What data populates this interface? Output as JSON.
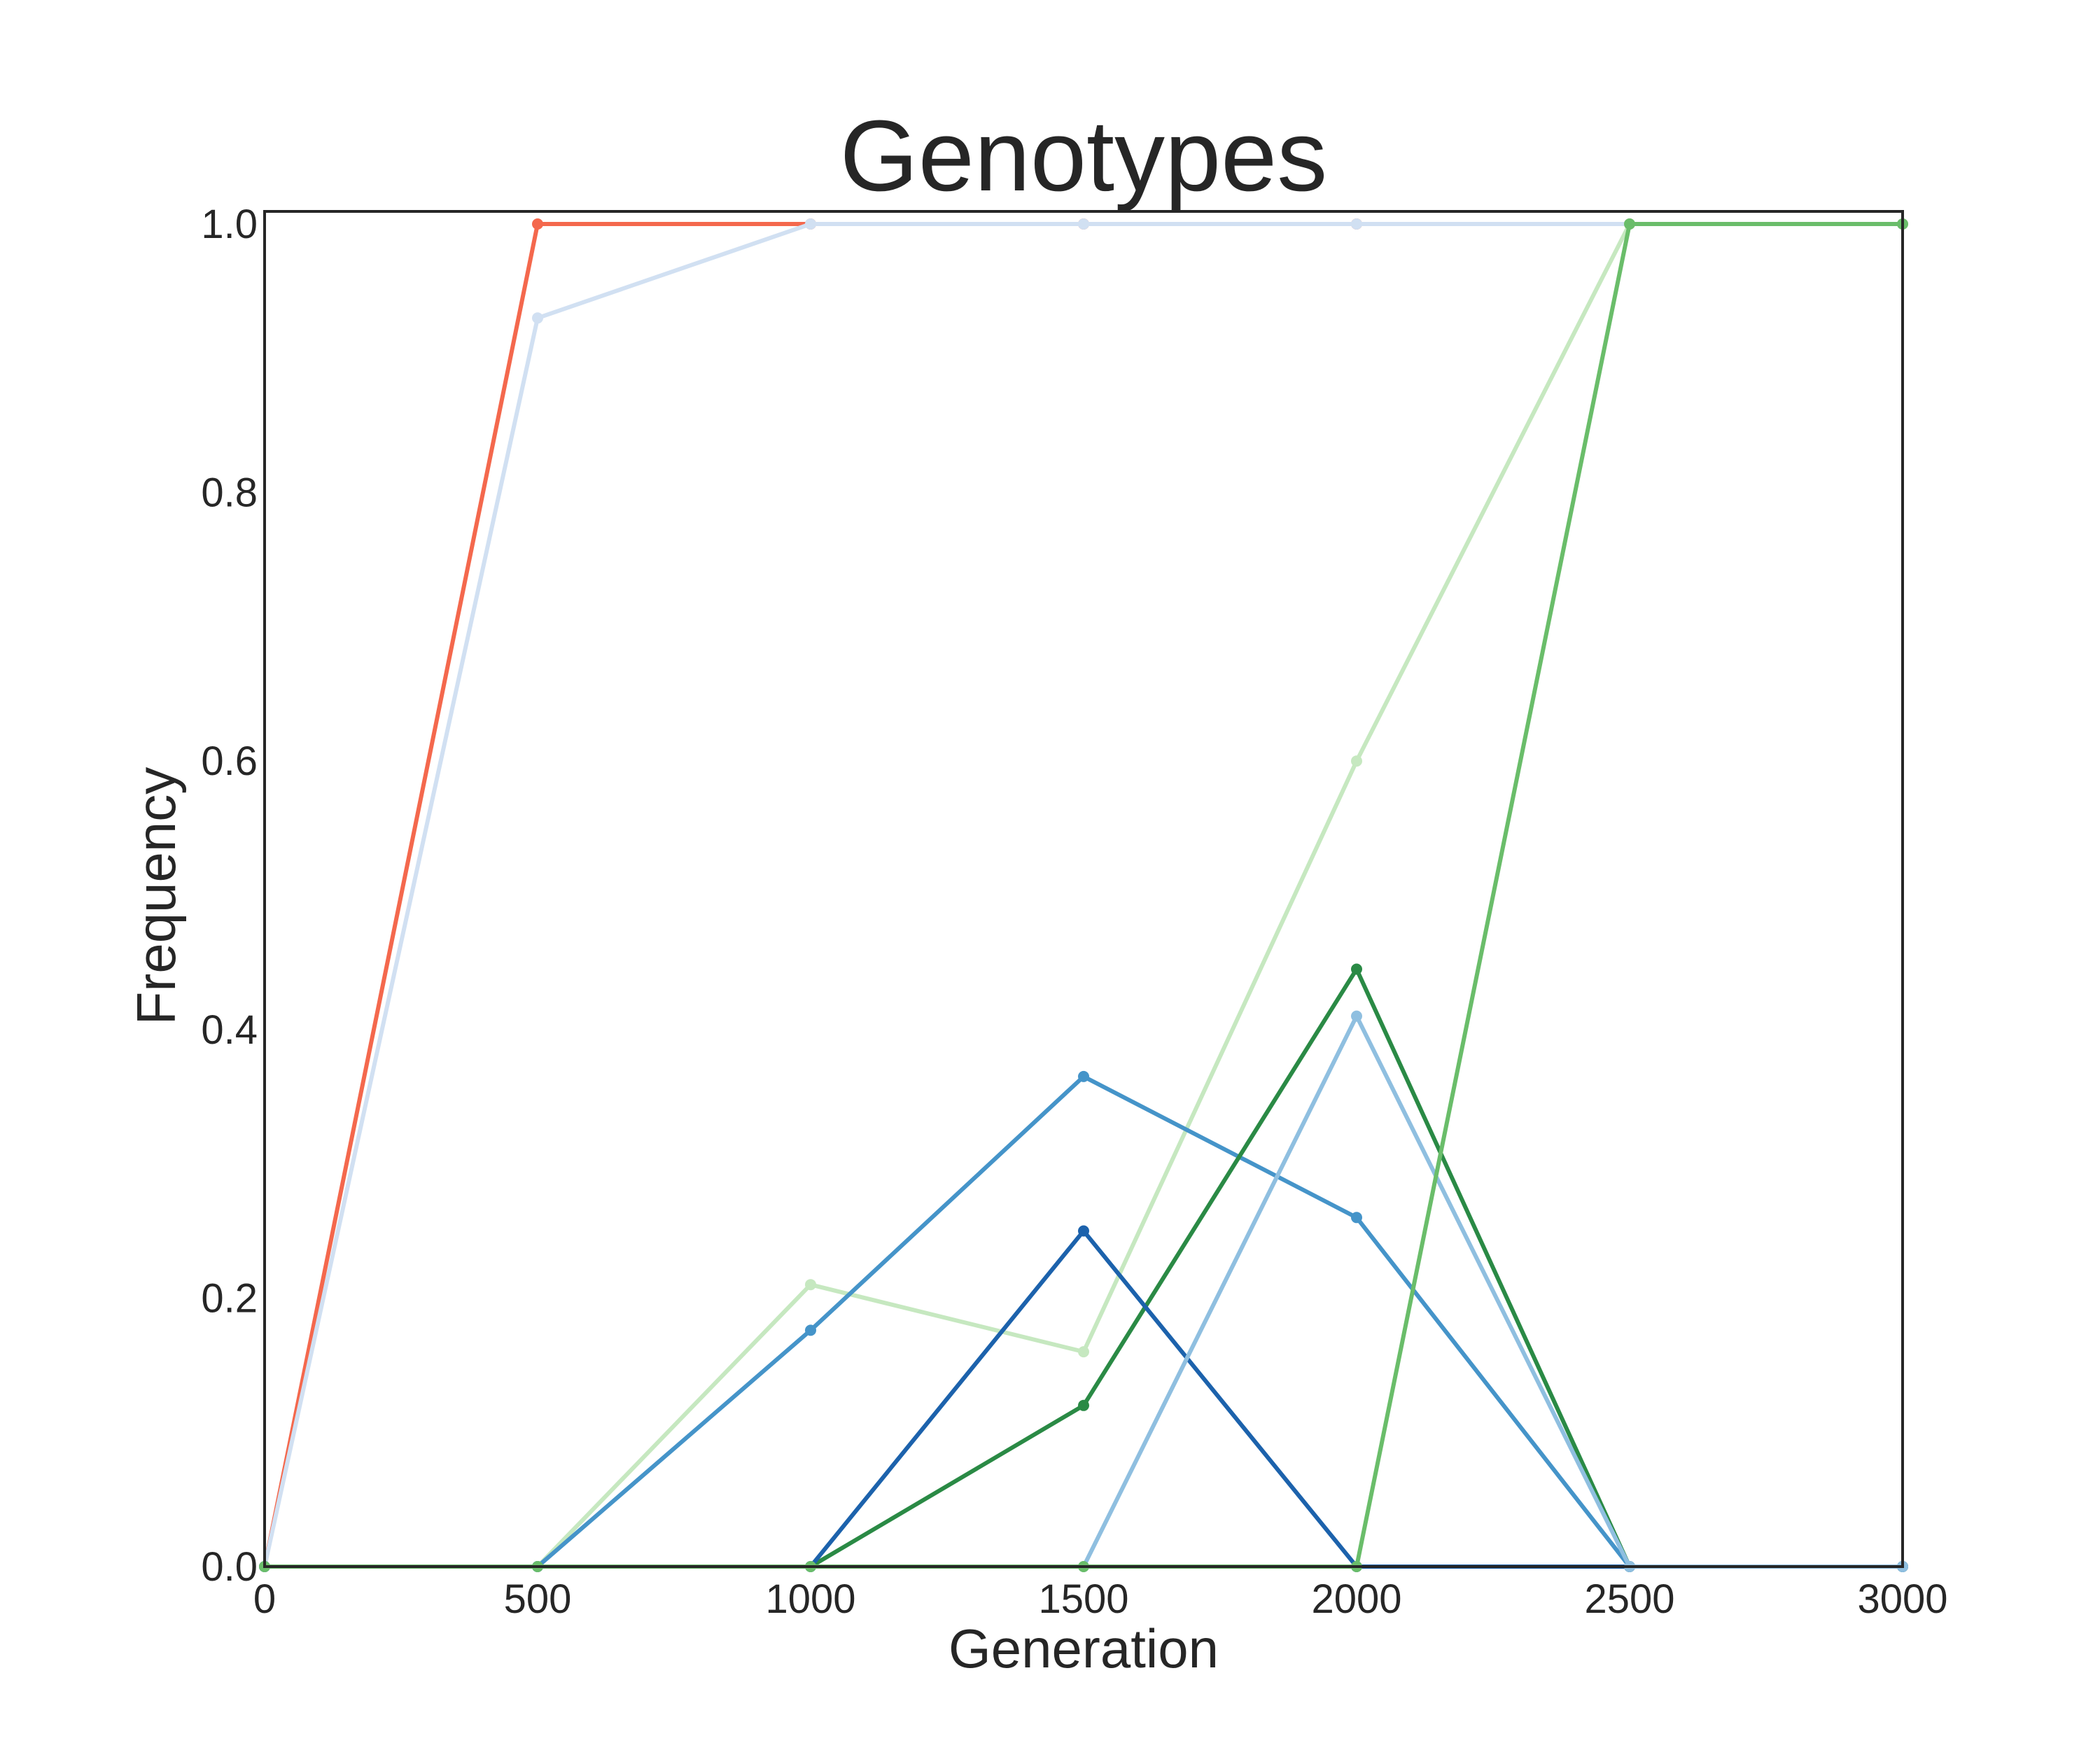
{
  "chart_data": {
    "type": "line",
    "title": "Genotypes",
    "xlabel": "Generation",
    "ylabel": "Frequency",
    "xlim": [
      0,
      3000
    ],
    "ylim": [
      0,
      1.0
    ],
    "x_ticks": [
      "0",
      "500",
      "1000",
      "1500",
      "2000",
      "2500",
      "3000"
    ],
    "y_ticks": [
      "0.0",
      "0.2",
      "0.4",
      "0.6",
      "0.8",
      "1.0"
    ],
    "grid": false,
    "legend": false,
    "x": [
      0,
      500,
      1000,
      1500,
      2000,
      2500,
      3000
    ],
    "series": [
      {
        "color": "#f4684d",
        "values": [
          0,
          1.0,
          1.0,
          1.0,
          1.0,
          1.0,
          1.0
        ]
      },
      {
        "color": "#d1e0f2",
        "values": [
          0,
          0.93,
          1.0,
          1.0,
          1.0,
          1.0,
          1.0
        ]
      },
      {
        "color": "#c6e8c0",
        "values": [
          0,
          0,
          0.21,
          0.16,
          0.6,
          1.0,
          1.0
        ]
      },
      {
        "color": "#4594c9",
        "values": [
          0,
          0,
          0.176,
          0.365,
          0.26,
          0,
          0
        ]
      },
      {
        "color": "#2a8a45",
        "values": [
          0,
          0,
          0,
          0.12,
          0.445,
          0,
          0
        ]
      },
      {
        "color": "#1c62ac",
        "values": [
          0,
          0,
          0,
          0.25,
          0,
          0,
          0
        ]
      },
      {
        "color": "#8fbfe0",
        "values": [
          0,
          0,
          0,
          0,
          0.41,
          0,
          0
        ]
      },
      {
        "color": "#6abd6a",
        "values": [
          0,
          0,
          0,
          0,
          0,
          1.0,
          1.0
        ]
      }
    ]
  }
}
